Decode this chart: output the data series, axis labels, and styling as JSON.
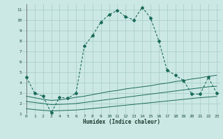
{
  "xlabel": "Humidex (Indice chaleur)",
  "bg_color": "#cce8e4",
  "grid_color": "#aacfcb",
  "line_color": "#1a6b5a",
  "xlim": [
    -0.5,
    23.5
  ],
  "ylim": [
    1,
    11.5
  ],
  "xticks": [
    0,
    1,
    2,
    3,
    4,
    5,
    6,
    7,
    8,
    9,
    10,
    11,
    12,
    13,
    14,
    15,
    16,
    17,
    18,
    19,
    20,
    21,
    22,
    23
  ],
  "yticks": [
    1,
    2,
    3,
    4,
    5,
    6,
    7,
    8,
    9,
    10,
    11
  ],
  "line1_x": [
    0,
    1,
    2,
    3,
    4,
    5,
    6,
    7,
    8,
    9,
    10,
    11,
    12,
    13,
    14,
    15,
    16,
    17,
    18,
    19,
    20,
    21,
    22,
    23
  ],
  "line1_y": [
    4.5,
    3.0,
    2.7,
    1.1,
    2.6,
    2.5,
    3.0,
    7.5,
    8.5,
    9.8,
    10.5,
    10.9,
    10.3,
    10.0,
    11.2,
    10.2,
    8.0,
    5.2,
    4.7,
    4.2,
    2.9,
    2.9,
    4.5,
    3.0
  ],
  "line2_x": [
    0,
    1,
    2,
    3,
    4,
    5,
    6,
    7,
    8,
    9,
    10,
    11,
    12,
    13,
    14,
    15,
    16,
    17,
    18,
    19,
    20,
    21,
    22,
    23
  ],
  "line2_y": [
    2.7,
    2.55,
    2.4,
    2.3,
    2.35,
    2.45,
    2.6,
    2.7,
    2.85,
    3.0,
    3.15,
    3.25,
    3.4,
    3.5,
    3.6,
    3.7,
    3.85,
    3.95,
    4.1,
    4.2,
    4.35,
    4.45,
    4.6,
    4.7
  ],
  "line3_x": [
    0,
    1,
    2,
    3,
    4,
    5,
    6,
    7,
    8,
    9,
    10,
    11,
    12,
    13,
    14,
    15,
    16,
    17,
    18,
    19,
    20,
    21,
    22,
    23
  ],
  "line3_y": [
    2.2,
    2.1,
    2.0,
    1.9,
    1.92,
    1.95,
    2.0,
    2.1,
    2.2,
    2.3,
    2.4,
    2.5,
    2.6,
    2.7,
    2.8,
    2.9,
    3.0,
    3.1,
    3.2,
    3.3,
    3.4,
    3.5,
    3.6,
    3.65
  ],
  "line4_x": [
    0,
    1,
    2,
    3,
    4,
    5,
    6,
    7,
    8,
    9,
    10,
    11,
    12,
    13,
    14,
    15,
    16,
    17,
    18,
    19,
    20,
    21,
    22,
    23
  ],
  "line4_y": [
    1.5,
    1.42,
    1.35,
    1.3,
    1.32,
    1.35,
    1.38,
    1.45,
    1.52,
    1.6,
    1.68,
    1.76,
    1.84,
    1.92,
    2.0,
    2.08,
    2.16,
    2.24,
    2.32,
    2.4,
    2.48,
    2.56,
    2.62,
    2.68
  ]
}
